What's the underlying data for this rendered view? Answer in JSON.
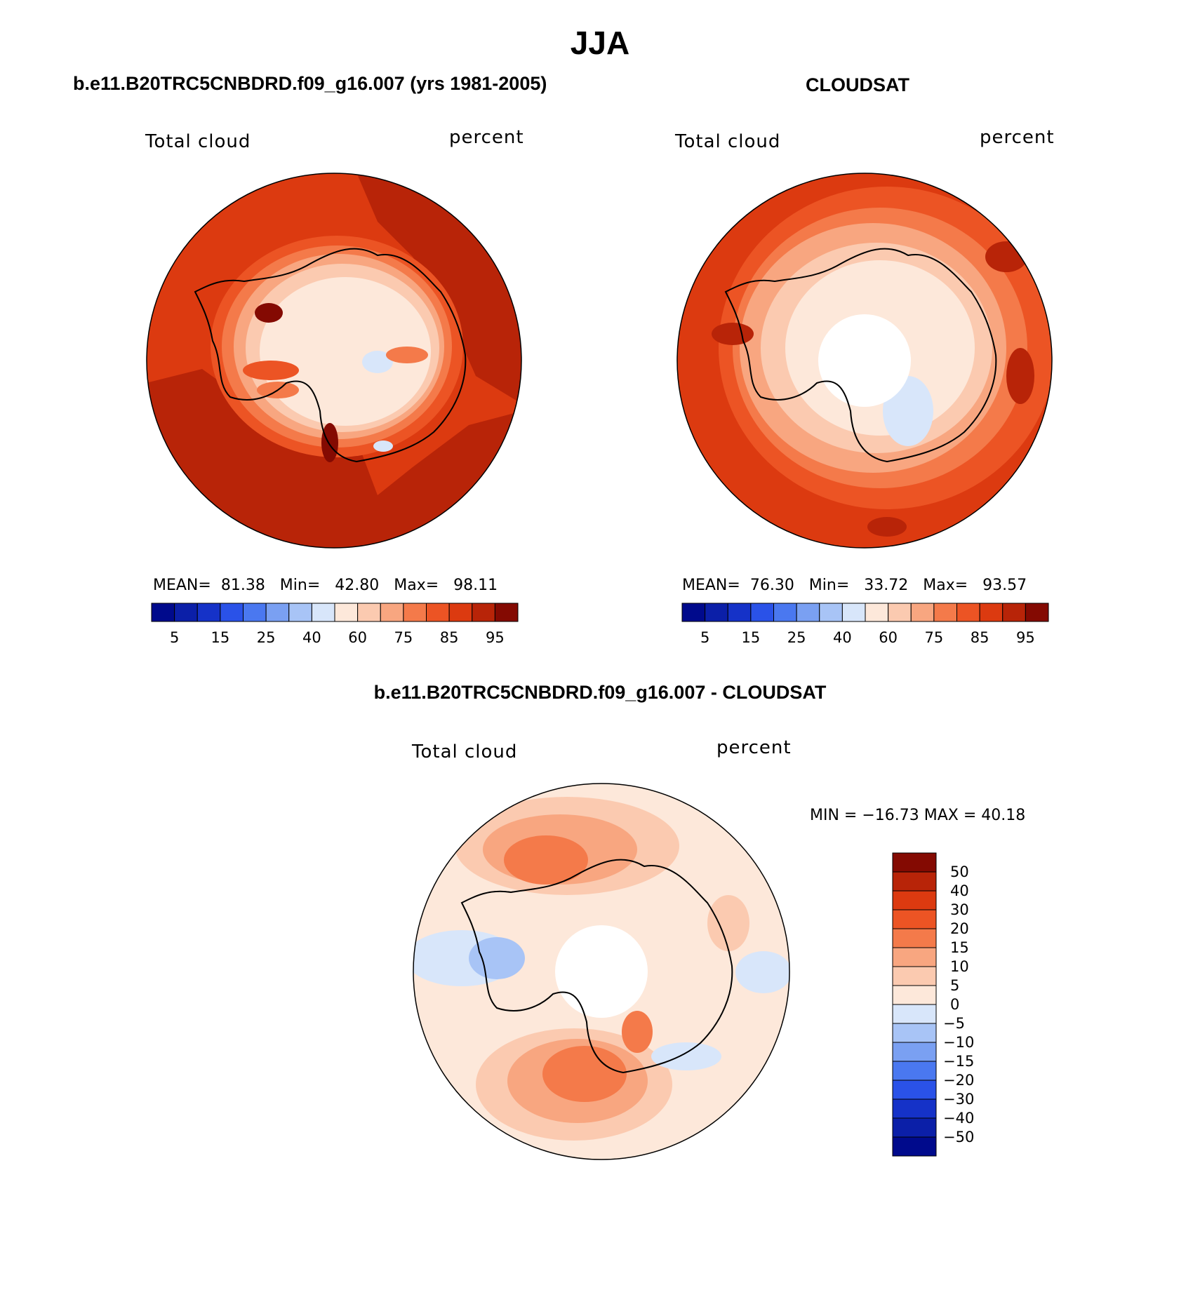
{
  "figure": {
    "title": "JJA"
  },
  "panel_model": {
    "title": "b.e11.B20TRC5CNBDRD.f09_g16.007 (yrs 1981-2005)",
    "variable": "Total cloud",
    "units": "percent",
    "stats": {
      "mean_label": "MEAN=",
      "mean": "81.38",
      "min_label": "Min=",
      "min": "42.80",
      "max_label": "Max=",
      "max": "98.11"
    }
  },
  "panel_obs": {
    "title": "CLOUDSAT",
    "variable": "Total cloud",
    "units": "percent",
    "stats": {
      "mean_label": "MEAN=",
      "mean": "76.30",
      "min_label": "Min=",
      "min": "33.72",
      "max_label": "Max=",
      "max": "93.57"
    }
  },
  "panel_diff": {
    "title": "b.e11.B20TRC5CNBDRD.f09_g16.007 - CLOUDSAT",
    "variable": "Total cloud",
    "units": "percent",
    "stats_text": "MIN = −16.73 MAX =   40.18"
  },
  "colorbar_abs": {
    "colors": [
      "#000a8c",
      "#0b1fa8",
      "#1532c8",
      "#2a52e8",
      "#4a78f0",
      "#7aa0f2",
      "#a8c4f6",
      "#d8e6fa",
      "#fde8da",
      "#fbcab0",
      "#f8a680",
      "#f47a4a",
      "#ec5424",
      "#dc3a10",
      "#b82408",
      "#840a02"
    ],
    "tick_labels": [
      "5",
      "15",
      "25",
      "40",
      "60",
      "75",
      "85",
      "95"
    ]
  },
  "colorbar_diff": {
    "colors": [
      "#840a02",
      "#b82408",
      "#dc3a10",
      "#ec5424",
      "#f47a4a",
      "#f8a680",
      "#fbcab0",
      "#fde8da",
      "#d8e6fa",
      "#a8c4f6",
      "#7aa0f2",
      "#4a78f0",
      "#2a52e8",
      "#1532c8",
      "#0b1fa8",
      "#000a8c"
    ],
    "tick_labels": [
      "50",
      "40",
      "30",
      "20",
      "15",
      "10",
      "5",
      "0",
      "−5",
      "−10",
      "−15",
      "−20",
      "−30",
      "−40",
      "−50"
    ]
  }
}
